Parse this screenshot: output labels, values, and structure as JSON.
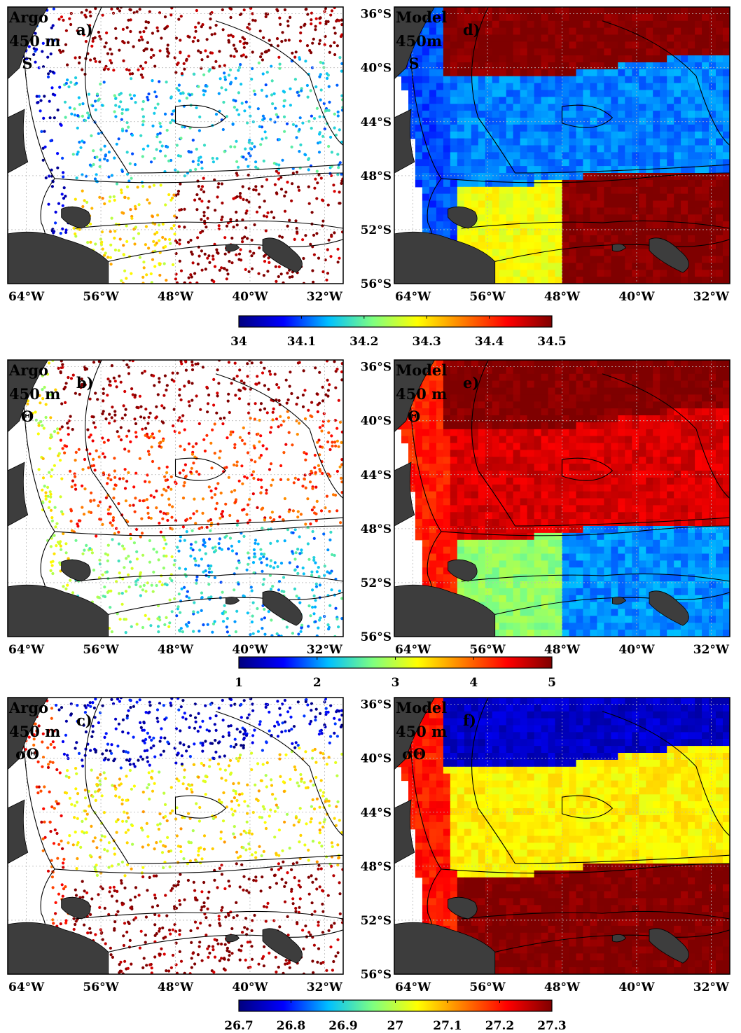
{
  "panels": [
    {
      "source": "Argo",
      "depth": "450 m",
      "variable": "S",
      "letter": "a)"
    },
    {
      "source": "Argo",
      "depth": "450 m",
      "variable": "Θ",
      "letter": "b)"
    },
    {
      "source": "Argo",
      "depth": "450 m",
      "variable": "σΘ",
      "letter": "c)"
    },
    {
      "source": "Model",
      "depth": "450m",
      "variable": "S",
      "letter": "d)"
    },
    {
      "source": "Model",
      "depth": "450 m",
      "variable": "Θ",
      "letter": "e)"
    },
    {
      "source": "Model",
      "depth": "450 m",
      "variable": "σΘ",
      "letter": "f)"
    }
  ],
  "colorbars": [
    {
      "ticks": [
        "34",
        "34.1",
        "34.2",
        "34.3",
        "34.4",
        "34.5"
      ],
      "range": [
        34,
        34.5
      ]
    },
    {
      "ticks": [
        "1",
        "2",
        "3",
        "4",
        "5"
      ],
      "range": [
        1,
        5
      ]
    },
    {
      "ticks": [
        "26.7",
        "26.8",
        "26.9",
        "27",
        "27.1",
        "27.2",
        "27.3"
      ],
      "range": [
        26.7,
        27.3
      ]
    }
  ],
  "colors": {
    "land": "#3d3d3d",
    "colormap": [
      "#00007f",
      "#0000ff",
      "#00bfff",
      "#7fff7f",
      "#ffff00",
      "#ff7f00",
      "#ff0000",
      "#7f0000"
    ]
  },
  "chart_data": {
    "type": "heatmap",
    "grid": "on",
    "x_axis_ticks": [
      "64°W",
      "56°W",
      "48°W",
      "40°W",
      "32°W"
    ],
    "y_axis_ticks": [
      "36°S",
      "40°S",
      "44°S",
      "48°S",
      "52°S",
      "56°S"
    ],
    "xlim": [
      -66,
      -30
    ],
    "ylim": [
      -56,
      -35.5
    ],
    "fields": [
      {
        "panel": "a)",
        "style": "scatter",
        "regions": {
          "north": 34.5,
          "central": 34.15,
          "shelf_edge": 34.05,
          "south_west": 34.3,
          "south_east": 34.5
        }
      },
      {
        "panel": "b)",
        "style": "scatter",
        "regions": {
          "north": 5,
          "central": 4.2,
          "shelf_edge": 3.2,
          "south_west": 2.8,
          "south_east": 2.2
        }
      },
      {
        "panel": "c)",
        "style": "scatter",
        "regions": {
          "north": 26.75,
          "central": 27.05,
          "shelf_edge": 27.2,
          "south_west": 27.3,
          "south_east": 27.3
        }
      },
      {
        "panel": "d)",
        "style": "field",
        "regions": {
          "north": 34.5,
          "central": 34.12,
          "shelf_edge": 34.1,
          "south_west": 34.28,
          "south_east": 34.5
        }
      },
      {
        "panel": "e)",
        "style": "field",
        "regions": {
          "north": 5,
          "central": 4.6,
          "shelf_edge": 4.3,
          "south_west": 2.8,
          "south_east": 2
        }
      },
      {
        "panel": "f)",
        "style": "field",
        "regions": {
          "north": 26.75,
          "central": 27.05,
          "shelf_edge": 27.2,
          "south_west": 27.3,
          "south_east": 27.3
        }
      }
    ]
  }
}
